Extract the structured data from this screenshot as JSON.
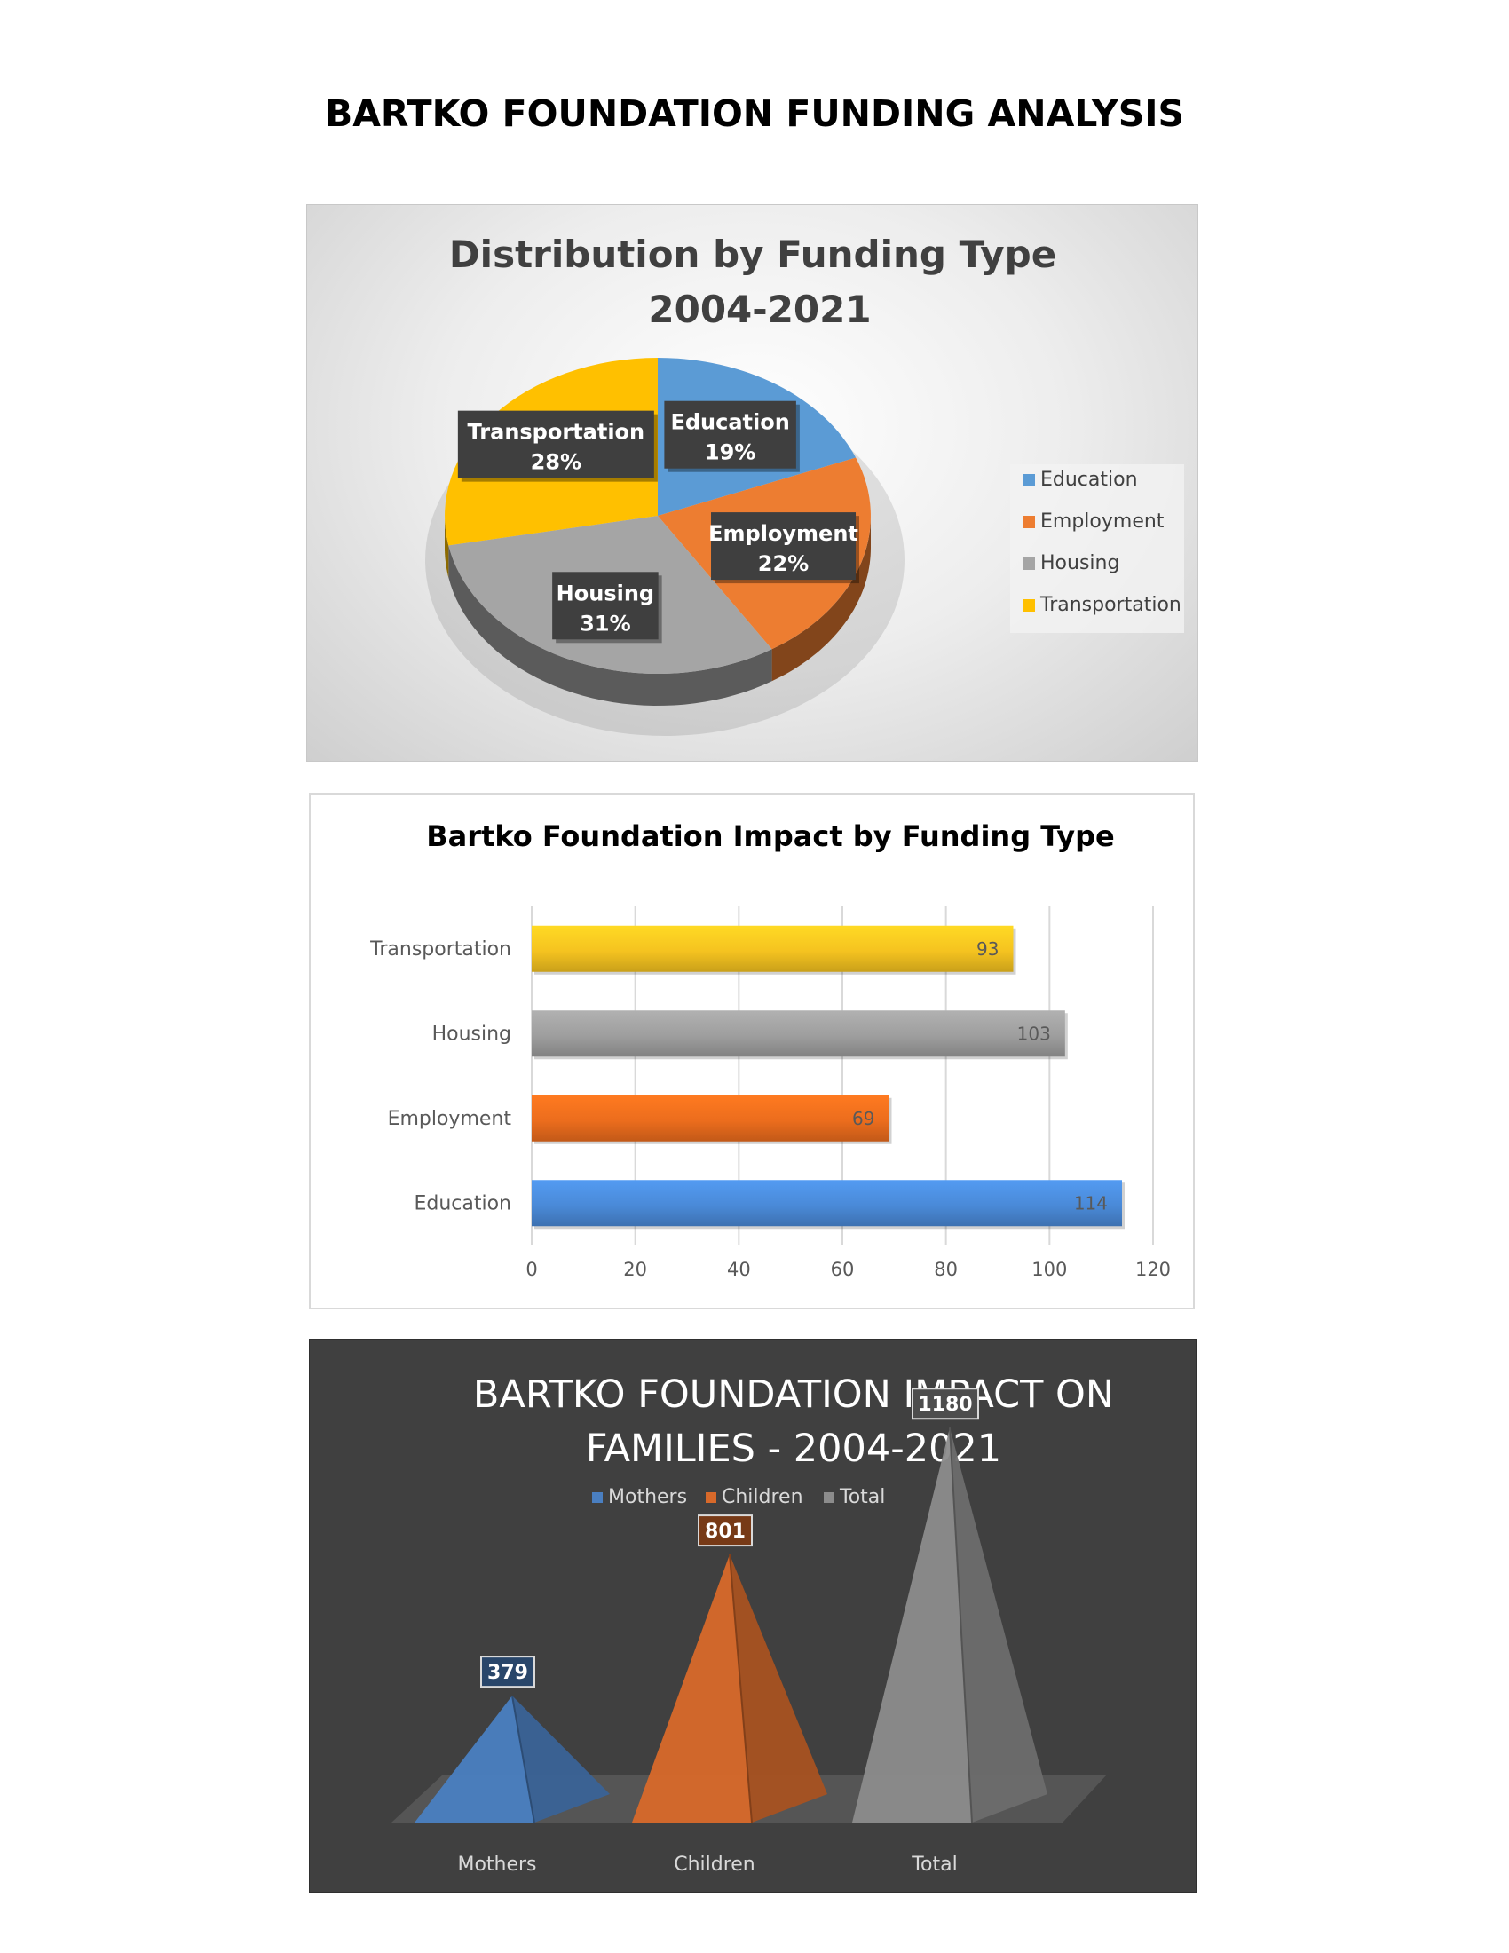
{
  "page": {
    "title": "BARTKO FOUNDATION FUNDING ANALYSIS"
  },
  "chart_data": [
    {
      "type": "pie",
      "title_lines": [
        "Distribution by Funding Type",
        "2004-2021"
      ],
      "categories": [
        "Education",
        "Employment",
        "Housing",
        "Transportation"
      ],
      "values": [
        19,
        22,
        31,
        28
      ],
      "value_labels": [
        "19%",
        "22%",
        "31%",
        "28%"
      ],
      "colors": [
        "#5b9bd5",
        "#ed7d31",
        "#a5a5a5",
        "#ffc000"
      ],
      "legend": "right",
      "style": "3d"
    },
    {
      "type": "bar",
      "orientation": "horizontal",
      "title": "Bartko Foundation Impact by Funding Type",
      "categories": [
        "Education",
        "Employment",
        "Housing",
        "Transportation"
      ],
      "values": [
        114,
        69,
        103,
        93
      ],
      "value_labels": [
        "114",
        "69",
        "103",
        "93"
      ],
      "colors": [
        "#4a8ad8",
        "#ec6d1d",
        "#9e9e9e",
        "#f5c320"
      ],
      "xlim": [
        0,
        120
      ],
      "xticks": [
        "0",
        "20",
        "40",
        "60",
        "80",
        "100",
        "120"
      ],
      "grid": true
    },
    {
      "type": "bar",
      "style": "3d pyramid",
      "title_lines": [
        "BARTKO FOUNDATION IMPACT ON",
        "FAMILIES - 2004-2021"
      ],
      "categories": [
        "Mothers",
        "Children",
        "Total"
      ],
      "values": [
        379,
        801,
        1180
      ],
      "value_labels": [
        "379",
        "801",
        "1180"
      ],
      "colors": [
        "#4a7fc1",
        "#d8692a",
        "#8c8c8c"
      ],
      "legend_labels": [
        "Mothers",
        "Children",
        "Total"
      ],
      "legend": "top"
    }
  ]
}
